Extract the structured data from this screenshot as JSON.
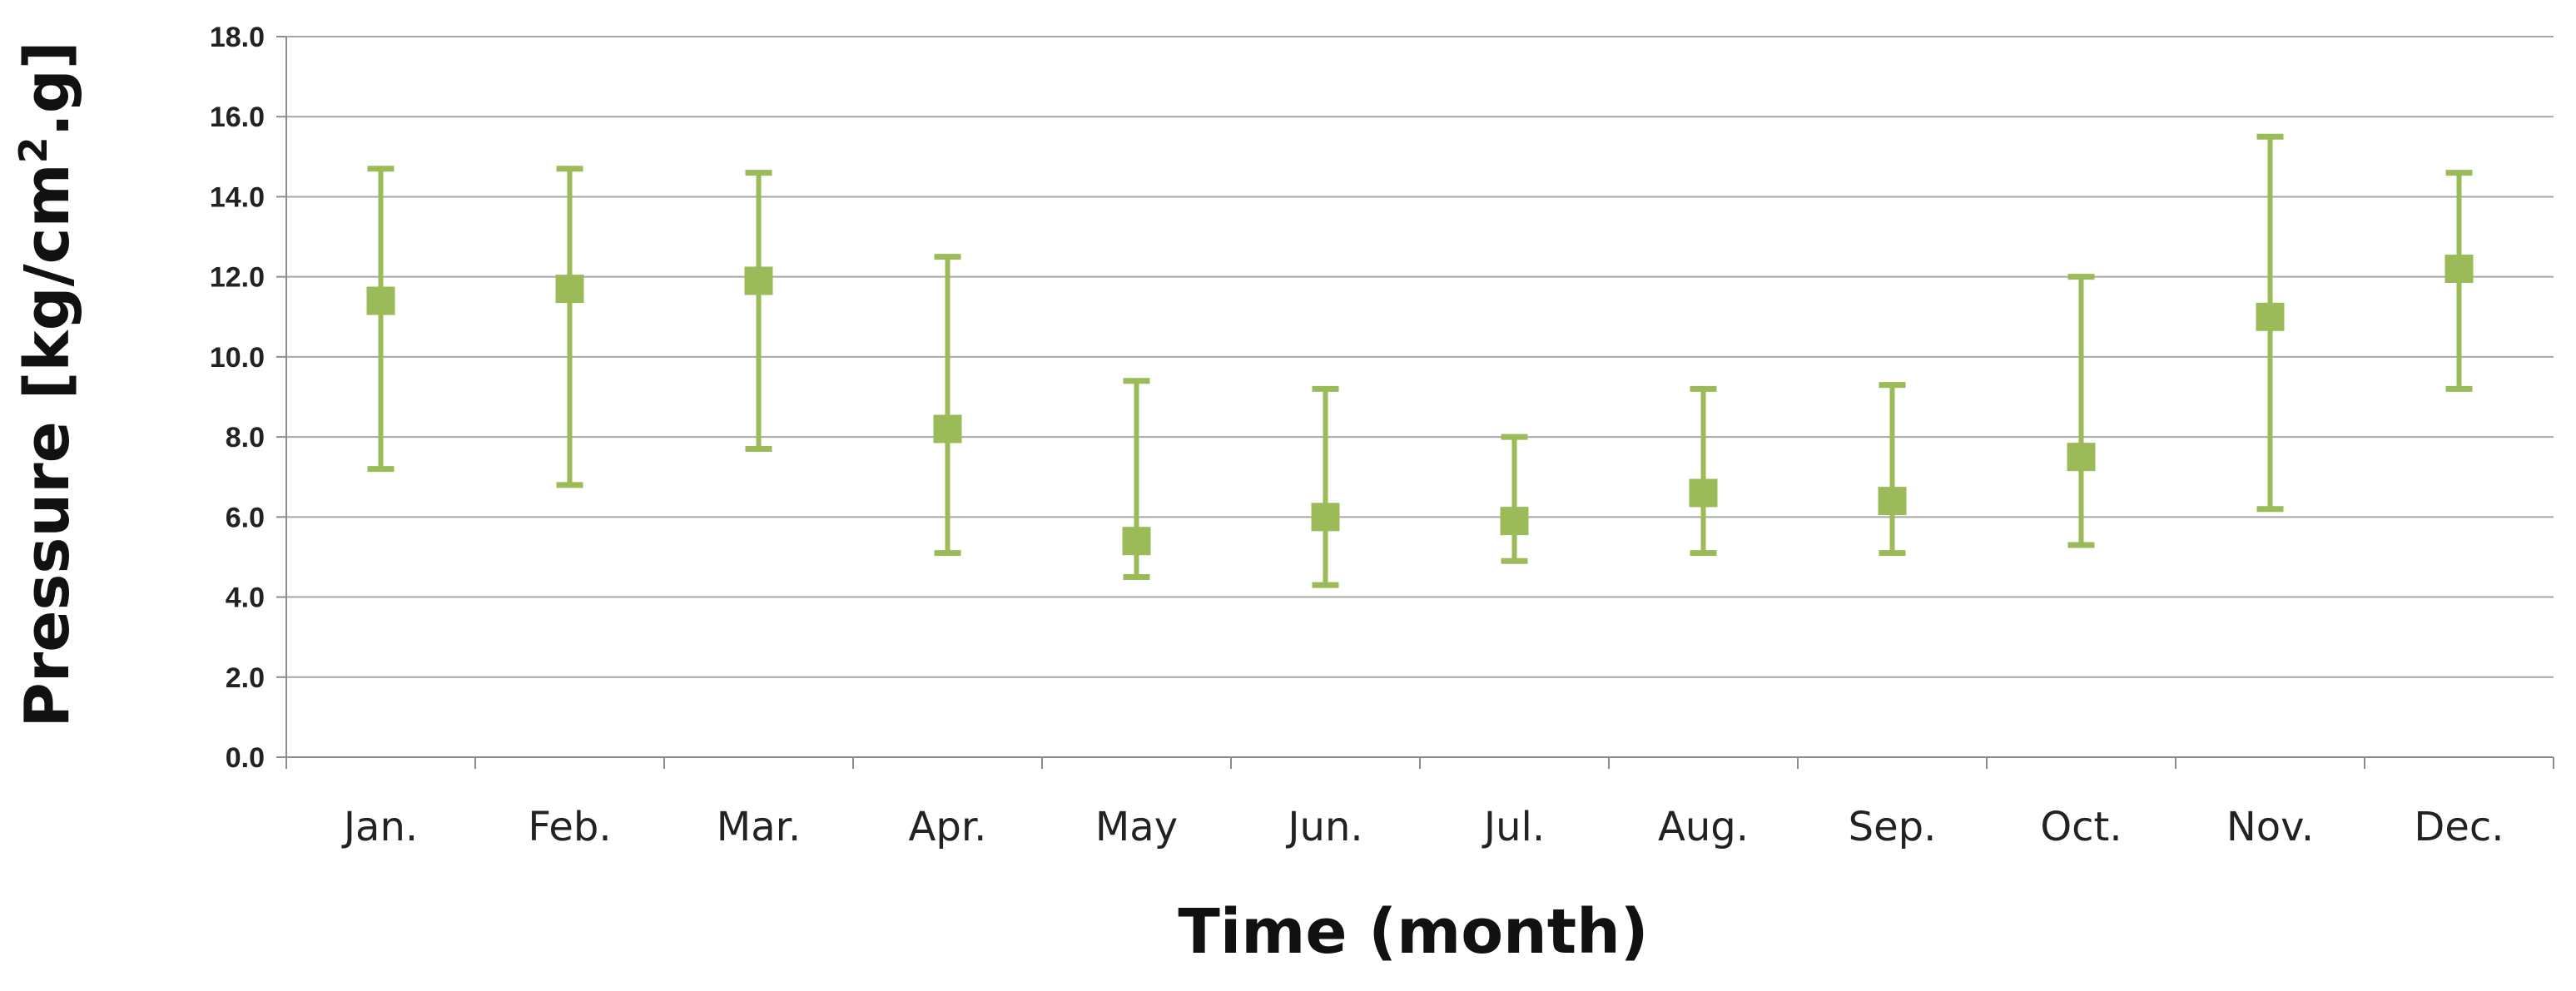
{
  "chart_data": {
    "type": "scatter",
    "title": "",
    "xlabel": "Time (month)",
    "ylabel_main": "Pressure [kg/cm",
    "ylabel_sup": "2",
    "ylabel_tail": ".g]",
    "ylim": [
      0,
      18
    ],
    "ytick_step": 2,
    "yticks": [
      "0.0",
      "2.0",
      "4.0",
      "6.0",
      "8.0",
      "10.0",
      "12.0",
      "14.0",
      "16.0",
      "18.0"
    ],
    "categories": [
      "Jan.",
      "Feb.",
      "Mar.",
      "Apr.",
      "May",
      "Jun.",
      "Jul.",
      "Aug.",
      "Sep.",
      "Oct.",
      "Nov.",
      "Dec."
    ],
    "grid": true,
    "legend": "none",
    "color": "#9bbb59",
    "series": [
      {
        "mean": [
          11.4,
          11.7,
          11.9,
          8.2,
          5.4,
          6.0,
          5.9,
          6.6,
          6.4,
          7.5,
          11.0,
          12.2
        ],
        "min": [
          7.2,
          6.8,
          7.7,
          5.1,
          4.5,
          4.3,
          4.9,
          5.1,
          5.1,
          5.3,
          6.2,
          9.2
        ],
        "max": [
          14.7,
          14.7,
          14.6,
          12.5,
          9.4,
          9.2,
          8.0,
          9.2,
          9.3,
          12.0,
          15.5,
          14.6
        ]
      }
    ]
  }
}
